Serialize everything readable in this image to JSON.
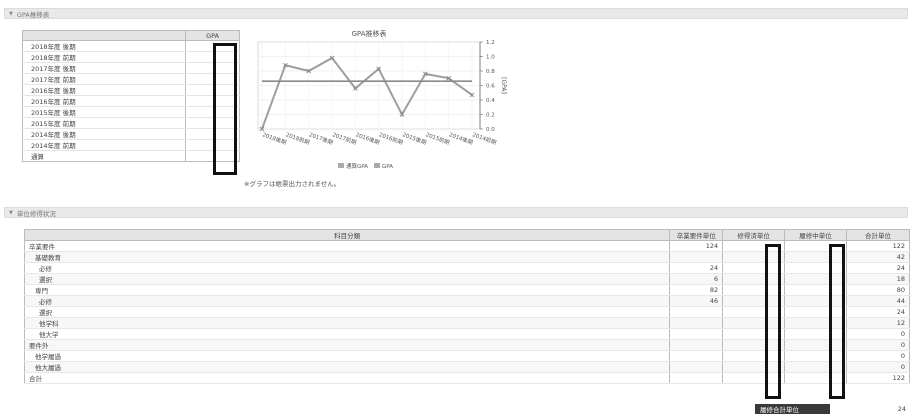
{
  "sections": {
    "gpa": "GPA推移表",
    "credits": "単位修得状況"
  },
  "gpa_table": {
    "header": "GPA",
    "rows": [
      "2018年度 後期",
      "2018年度 前期",
      "2017年度 後期",
      "2017年度 前期",
      "2016年度 後期",
      "2016年度 前期",
      "2015年度 後期",
      "2015年度 前期",
      "2014年度 後期",
      "2014年度 前期",
      "通算"
    ]
  },
  "chart_data": {
    "type": "line",
    "title": "GPA推移表",
    "ylabel": "[GPA]",
    "categories": [
      "2018後期",
      "2018前期",
      "2017後期",
      "2017前期",
      "2016後期",
      "2016前期",
      "2015後期",
      "2015前期",
      "2014後期",
      "2014前期"
    ],
    "series": [
      {
        "name": "GPA",
        "values": [
          0.0,
          0.88,
          0.8,
          0.98,
          0.56,
          0.83,
          0.2,
          0.76,
          0.7,
          0.47
        ],
        "color": "#9e9e9e"
      },
      {
        "name": "通算GPA",
        "values": [
          0.66,
          0.66,
          0.66,
          0.66,
          0.66,
          0.66,
          0.66,
          0.66,
          0.66,
          0.66
        ],
        "color": "#8a8a8a"
      }
    ],
    "legend": [
      "通算GPA",
      "GPA"
    ],
    "y_ticks": [
      "0.0",
      "0.2",
      "0.4",
      "0.6",
      "0.8",
      "1.0",
      "1.2"
    ],
    "ylim": [
      0,
      1.2
    ],
    "grid": true,
    "legend_position": "bottom"
  },
  "chart_note": "※グラフは帳票出力されません。",
  "credit_table": {
    "headers": [
      "科目分類",
      "卒業要件単位",
      "修得済単位",
      "履修中単位",
      "合計単位"
    ],
    "rows": [
      {
        "name": "卒業要件",
        "level": 0,
        "req": "124",
        "total": "122"
      },
      {
        "name": "基礎教育",
        "level": 1,
        "req": "",
        "total": "42"
      },
      {
        "name": "必修",
        "level": 2,
        "req": "24",
        "total": "24"
      },
      {
        "name": "選択",
        "level": 2,
        "req": "6",
        "total": "18"
      },
      {
        "name": "専門",
        "level": 1,
        "req": "82",
        "total": "80"
      },
      {
        "name": "必修",
        "level": 2,
        "req": "46",
        "total": "44"
      },
      {
        "name": "選択",
        "level": 2,
        "req": "",
        "total": "24"
      },
      {
        "name": "他学科",
        "level": 2,
        "req": "",
        "total": "12"
      },
      {
        "name": "他大学",
        "level": 2,
        "req": "",
        "total": "0"
      },
      {
        "name": "要件外",
        "level": 0,
        "req": "",
        "total": "0"
      },
      {
        "name": "他学履過",
        "level": 1,
        "req": "",
        "total": "0"
      },
      {
        "name": "他大履過",
        "level": 1,
        "req": "",
        "total": "0"
      },
      {
        "name": "合計",
        "level": 0,
        "req": "",
        "total": "122"
      }
    ]
  },
  "summary": {
    "label": "履修合計単位",
    "value": "24"
  }
}
